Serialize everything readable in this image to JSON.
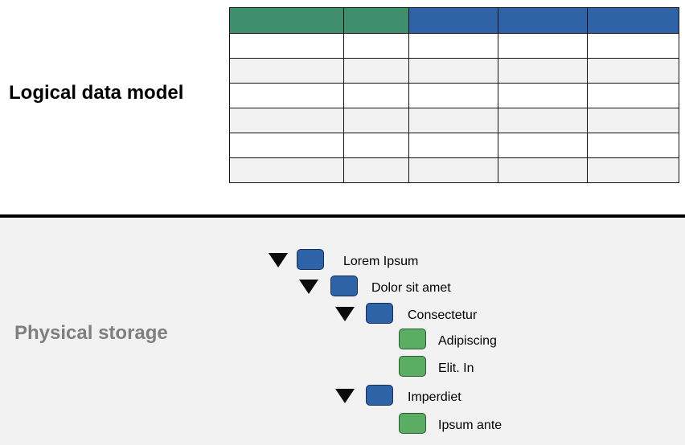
{
  "logical": {
    "title": "Logical data model"
  },
  "physical": {
    "title": "Physical storage"
  },
  "colors": {
    "header_green": "#3f8f6f",
    "header_blue": "#2e63a8",
    "folder_blue": "#2f63a8",
    "leaf_green": "#5aad62",
    "band_gray": "#f2f2f2",
    "physical_title_gray": "#7f7f7f"
  },
  "tree": [
    {
      "label": "Lorem Ipsum",
      "type": "folder",
      "expanded": true,
      "icon": "folder-icon"
    },
    {
      "label": "Dolor sit amet",
      "type": "folder",
      "expanded": true,
      "icon": "folder-icon"
    },
    {
      "label": "Consectetur",
      "type": "folder",
      "expanded": true,
      "icon": "folder-icon"
    },
    {
      "label": "Adipiscing",
      "type": "leaf",
      "icon": "leaf-icon"
    },
    {
      "label": "Elit. In",
      "type": "leaf",
      "icon": "leaf-icon"
    },
    {
      "label": "Imperdiet",
      "type": "folder",
      "expanded": true,
      "icon": "folder-icon"
    },
    {
      "label": "Ipsum ante",
      "type": "leaf",
      "icon": "leaf-icon"
    }
  ]
}
